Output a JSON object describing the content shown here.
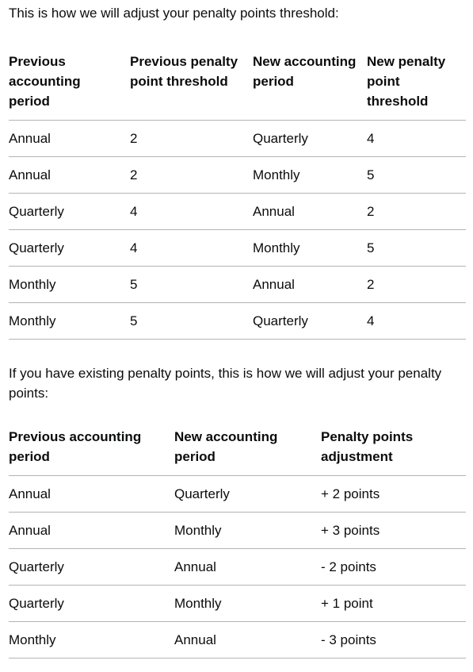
{
  "intro_threshold": "This is how we will adjust your penalty points threshold:",
  "threshold_table": {
    "headers": [
      "Previous accounting period",
      "Previous penalty point threshold",
      "New accounting period",
      "New penalty point threshold"
    ],
    "rows": [
      [
        "Annual",
        "2",
        "Quarterly",
        "4"
      ],
      [
        "Annual",
        "2",
        "Monthly",
        "5"
      ],
      [
        "Quarterly",
        "4",
        "Annual",
        "2"
      ],
      [
        "Quarterly",
        "4",
        "Monthly",
        "5"
      ],
      [
        "Monthly",
        "5",
        "Annual",
        "2"
      ],
      [
        "Monthly",
        "5",
        "Quarterly",
        "4"
      ]
    ]
  },
  "intro_points": "If you have existing penalty points, this is how we will adjust your penalty points:",
  "points_table": {
    "headers": [
      "Previous accounting period",
      "New accounting period",
      "Penalty points adjustment"
    ],
    "rows": [
      [
        "Annual",
        "Quarterly",
        "+ 2 points"
      ],
      [
        "Annual",
        "Monthly",
        "+ 3 points"
      ],
      [
        "Quarterly",
        "Annual",
        "- 2 points"
      ],
      [
        "Quarterly",
        "Monthly",
        "+ 1 point"
      ],
      [
        "Monthly",
        "Annual",
        "- 3 points"
      ]
    ]
  }
}
